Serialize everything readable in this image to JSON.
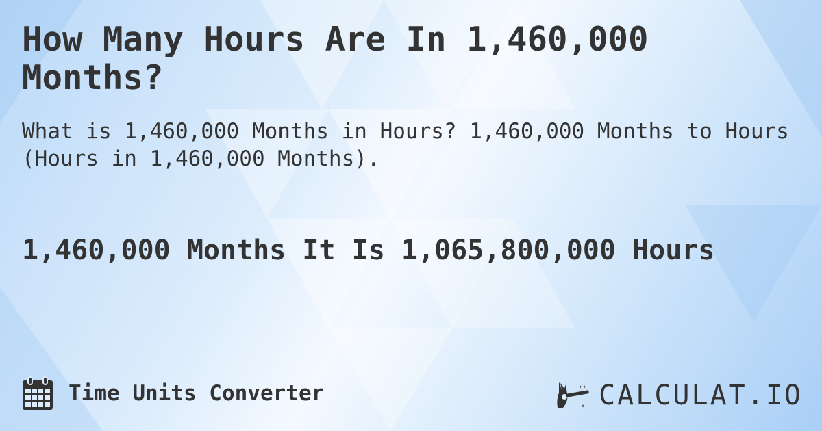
{
  "title": "How Many Hours Are In 1,460,000 Months?",
  "subtitle": "What is 1,460,000 Months in Hours? 1,460,000 Months to Hours (Hours in 1,460,000 Months).",
  "result": "1,460,000 Months It Is 1,065,800,000 Hours",
  "footer": {
    "category": "Time Units Converter",
    "icon": "calendar-icon"
  },
  "logo": {
    "text": "CALCULAT.IO",
    "icon": "magic-wand-hand-icon"
  },
  "colors": {
    "text": "#333333",
    "background": "#cfe4fa"
  }
}
